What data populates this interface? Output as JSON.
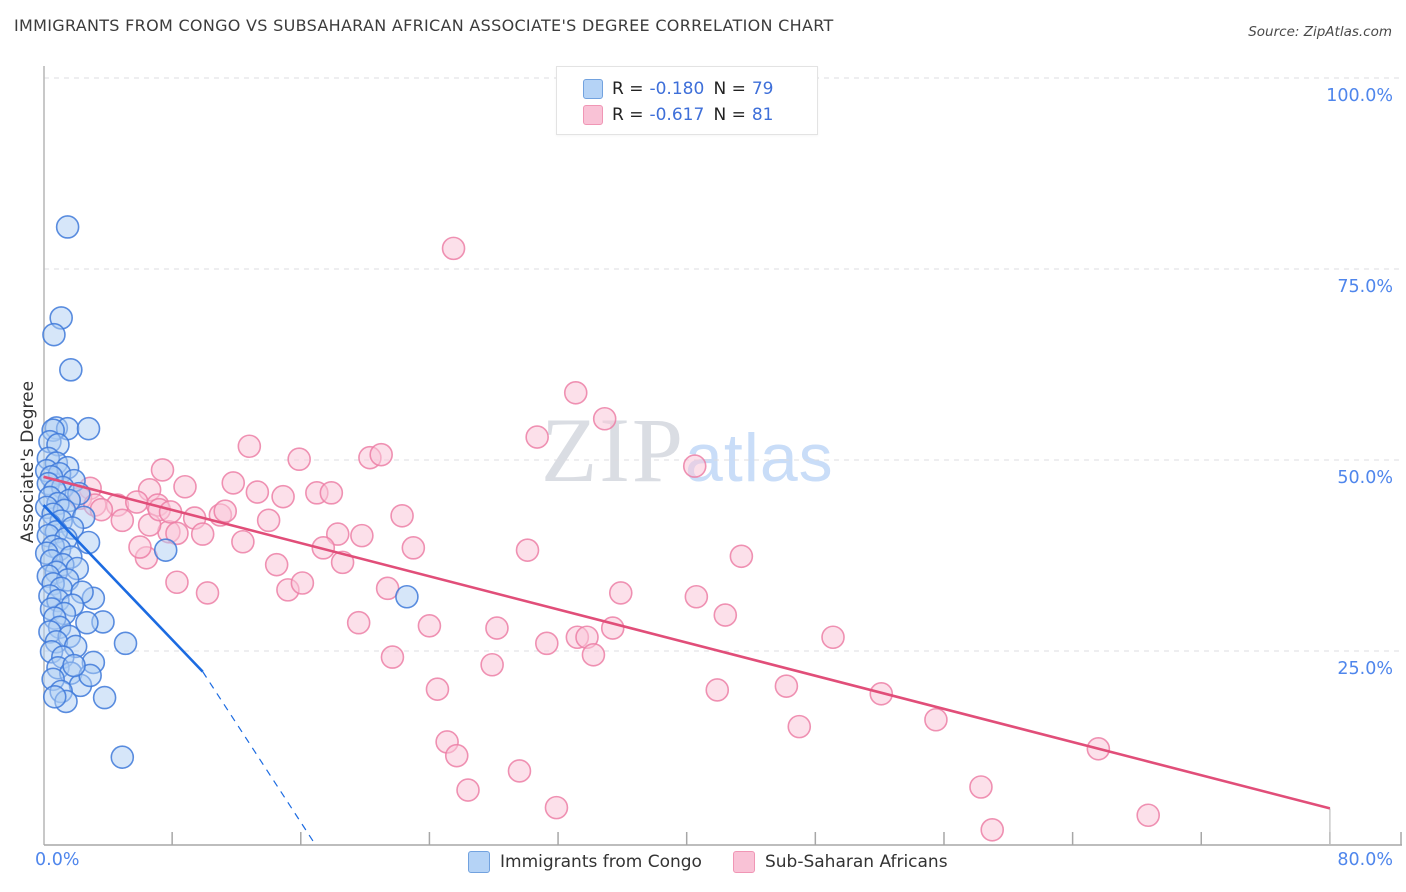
{
  "title": "IMMIGRANTS FROM CONGO VS SUBSAHARAN AFRICAN ASSOCIATE'S DEGREE CORRELATION CHART",
  "source": "Source: ZipAtlas.com",
  "watermark": {
    "zip": "ZIP",
    "atlas": "atlas"
  },
  "colors": {
    "axis_label_blue": "#4f86ec",
    "stat_value_blue": "#3e6fd9",
    "congo_stroke": "#3e79d9",
    "congo_fill": "#aecdf3",
    "subsaharan_stroke": "#ec7fa6",
    "subsaharan_fill": "#f9c6d8",
    "congo_trend": "#1c6be1",
    "subsaharan_trend": "#e14e79",
    "gridline": "#dcdce0",
    "axis_line": "#a7a7a7"
  },
  "stats_legend": {
    "rows": [
      {
        "r_label": "R =",
        "r_value": "-0.180",
        "n_label": "N =",
        "n_value": "79",
        "swatch_fill": "#b5d3f6",
        "swatch_stroke": "#72a2df"
      },
      {
        "r_label": "R =",
        "r_value": "-0.617",
        "n_label": "N =",
        "n_value": "81",
        "swatch_fill": "#f9c2d6",
        "swatch_stroke": "#f096b5"
      }
    ]
  },
  "chart_data": {
    "type": "scatter",
    "title": "Immigrants from Congo vs Subsaharan African Associate's Degree",
    "xlabel": "",
    "ylabel": "Associate's Degree",
    "x_axis": {
      "min": 0,
      "max": 80,
      "unit": "%",
      "tick_step": 8,
      "min_label": "0.0%",
      "max_label": "80.0%"
    },
    "y_axis": {
      "min": 0,
      "max": 100,
      "unit": "%",
      "gridlines": [
        100,
        75,
        50,
        25
      ],
      "tick_labels": [
        "100.0%",
        "75.0%",
        "50.0%",
        "25.0%"
      ],
      "grid": "dashed",
      "label_side": "right"
    },
    "legend_position": "bottom-center",
    "series": [
      {
        "name": "Sub-Saharan Africans",
        "r": -0.617,
        "n": 81,
        "trend": {
          "solid": [
            [
              0,
              47.8
            ],
            [
              80,
              4.4
            ]
          ],
          "end_drop_to_axis": true
        },
        "points": [
          [
            25.5,
            77.7
          ],
          [
            33.1,
            58.8
          ],
          [
            34.9,
            55.4
          ],
          [
            40.5,
            49.2
          ],
          [
            12.8,
            51.8
          ],
          [
            15.9,
            50.1
          ],
          [
            20.3,
            50.3
          ],
          [
            21.0,
            50.7
          ],
          [
            30.7,
            53.0
          ],
          [
            7.4,
            48.7
          ],
          [
            8.8,
            46.5
          ],
          [
            6.6,
            46.1
          ],
          [
            11.8,
            47.0
          ],
          [
            13.3,
            45.8
          ],
          [
            14.9,
            45.2
          ],
          [
            17.0,
            45.7
          ],
          [
            17.9,
            45.7
          ],
          [
            9.4,
            42.4
          ],
          [
            11.0,
            42.8
          ],
          [
            11.3,
            43.3
          ],
          [
            14.0,
            42.1
          ],
          [
            7.8,
            40.6
          ],
          [
            9.9,
            40.3
          ],
          [
            12.4,
            39.3
          ],
          [
            22.3,
            42.7
          ],
          [
            18.3,
            40.3
          ],
          [
            19.8,
            40.1
          ],
          [
            17.4,
            38.5
          ],
          [
            18.6,
            36.6
          ],
          [
            14.5,
            36.3
          ],
          [
            15.2,
            33.0
          ],
          [
            16.1,
            33.9
          ],
          [
            8.3,
            34.0
          ],
          [
            10.2,
            32.6
          ],
          [
            23.0,
            38.5
          ],
          [
            21.4,
            33.2
          ],
          [
            19.6,
            28.7
          ],
          [
            24.0,
            28.3
          ],
          [
            28.2,
            28.0
          ],
          [
            30.1,
            38.2
          ],
          [
            43.4,
            37.4
          ],
          [
            35.9,
            32.6
          ],
          [
            40.6,
            32.1
          ],
          [
            42.4,
            29.7
          ],
          [
            35.4,
            28.0
          ],
          [
            33.2,
            26.8
          ],
          [
            33.8,
            26.8
          ],
          [
            34.2,
            24.5
          ],
          [
            49.1,
            26.8
          ],
          [
            41.9,
            19.9
          ],
          [
            46.2,
            20.4
          ],
          [
            52.1,
            19.4
          ],
          [
            55.5,
            16.0
          ],
          [
            47.0,
            15.1
          ],
          [
            58.3,
            7.2
          ],
          [
            59.0,
            1.6
          ],
          [
            65.6,
            12.2
          ],
          [
            68.7,
            3.5
          ],
          [
            6.4,
            37.2
          ],
          [
            2.9,
            46.3
          ],
          [
            2.3,
            45.0
          ],
          [
            3.2,
            44.1
          ],
          [
            4.6,
            44.1
          ],
          [
            5.8,
            44.5
          ],
          [
            7.1,
            44.1
          ],
          [
            3.6,
            43.5
          ],
          [
            4.9,
            42.1
          ],
          [
            6.6,
            41.5
          ],
          [
            7.2,
            43.5
          ],
          [
            7.9,
            43.2
          ],
          [
            8.3,
            40.4
          ],
          [
            6.0,
            38.6
          ],
          [
            24.5,
            20.0
          ],
          [
            25.1,
            13.1
          ],
          [
            25.7,
            11.3
          ],
          [
            26.4,
            6.8
          ],
          [
            29.6,
            9.3
          ],
          [
            31.9,
            4.5
          ],
          [
            21.7,
            24.2
          ],
          [
            27.9,
            23.2
          ],
          [
            31.3,
            26.0
          ]
        ]
      },
      {
        "name": "Immigrants from Congo",
        "r": -0.18,
        "n": 79,
        "trend": {
          "solid": [
            [
              0,
              44.1
            ],
            [
              9.9,
              22.3
            ]
          ],
          "dashed": [
            [
              9.9,
              22.3
            ],
            [
              16.8,
              0
            ]
          ]
        },
        "points": [
          [
            1.5,
            80.5
          ],
          [
            1.1,
            68.6
          ],
          [
            0.65,
            66.4
          ],
          [
            1.7,
            61.8
          ],
          [
            0.8,
            54.2
          ],
          [
            1.5,
            54.1
          ],
          [
            2.8,
            54.1
          ],
          [
            0.6,
            53.9
          ],
          [
            0.4,
            52.4
          ],
          [
            0.9,
            52.0
          ],
          [
            7.6,
            38.2
          ],
          [
            22.6,
            32.1
          ],
          [
            4.9,
            11.1
          ],
          [
            3.1,
            31.9
          ],
          [
            3.7,
            28.8
          ],
          [
            5.1,
            26.0
          ],
          [
            0.3,
            50.2
          ],
          [
            0.8,
            49.6
          ],
          [
            1.5,
            49.0
          ],
          [
            0.2,
            48.6
          ],
          [
            1.0,
            48.2
          ],
          [
            0.5,
            47.8
          ],
          [
            1.9,
            47.3
          ],
          [
            0.3,
            46.9
          ],
          [
            1.2,
            46.4
          ],
          [
            0.7,
            46.0
          ],
          [
            2.2,
            45.6
          ],
          [
            0.4,
            45.1
          ],
          [
            1.6,
            44.7
          ],
          [
            0.9,
            44.3
          ],
          [
            0.2,
            43.8
          ],
          [
            1.3,
            43.4
          ],
          [
            0.6,
            42.9
          ],
          [
            2.5,
            42.5
          ],
          [
            1.1,
            42.0
          ],
          [
            0.4,
            41.5
          ],
          [
            1.8,
            41.1
          ],
          [
            0.8,
            40.6
          ],
          [
            0.3,
            40.1
          ],
          [
            1.4,
            39.7
          ],
          [
            2.8,
            39.2
          ],
          [
            0.6,
            38.7
          ],
          [
            1.0,
            38.3
          ],
          [
            0.2,
            37.8
          ],
          [
            1.7,
            37.3
          ],
          [
            0.5,
            36.8
          ],
          [
            1.2,
            36.3
          ],
          [
            2.1,
            35.8
          ],
          [
            0.8,
            35.3
          ],
          [
            0.3,
            34.8
          ],
          [
            1.5,
            34.3
          ],
          [
            0.6,
            33.8
          ],
          [
            1.1,
            33.2
          ],
          [
            2.4,
            32.7
          ],
          [
            0.4,
            32.2
          ],
          [
            0.9,
            31.6
          ],
          [
            1.8,
            31.0
          ],
          [
            0.5,
            30.5
          ],
          [
            1.3,
            29.9
          ],
          [
            0.7,
            29.3
          ],
          [
            2.7,
            28.7
          ],
          [
            1.0,
            28.1
          ],
          [
            0.4,
            27.5
          ],
          [
            1.6,
            26.9
          ],
          [
            0.8,
            26.2
          ],
          [
            2.0,
            25.6
          ],
          [
            0.5,
            24.9
          ],
          [
            1.2,
            24.2
          ],
          [
            3.1,
            23.5
          ],
          [
            0.9,
            22.8
          ],
          [
            1.7,
            22.1
          ],
          [
            0.6,
            21.3
          ],
          [
            2.3,
            20.5
          ],
          [
            1.1,
            19.7
          ],
          [
            3.8,
            18.9
          ],
          [
            1.4,
            18.4
          ],
          [
            0.7,
            19.0
          ],
          [
            2.9,
            21.8
          ],
          [
            1.9,
            23.1
          ]
        ]
      }
    ]
  }
}
